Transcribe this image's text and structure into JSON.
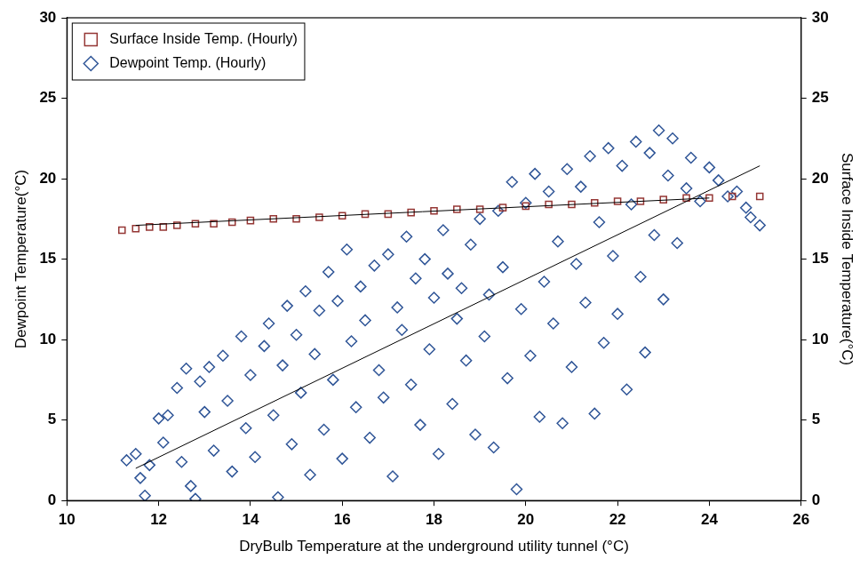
{
  "chart_data": {
    "type": "scatter",
    "xlabel": "DryBulb Temperature at the underground utility tunnel (°C)",
    "ylabel": "Dewpoint Temperature(°C)",
    "y2label": "Surface Inside Temperature(°C)",
    "xlim": [
      10,
      26
    ],
    "xticks": [
      10,
      12,
      14,
      16,
      18,
      20,
      22,
      24,
      26
    ],
    "ylim": [
      0,
      30
    ],
    "yticks": [
      0,
      5,
      10,
      15,
      20,
      25,
      30
    ],
    "y2lim": [
      0,
      30
    ],
    "y2ticks": [
      0,
      5,
      10,
      15,
      20,
      25,
      30
    ],
    "grid": false,
    "legend": "upper left",
    "series": [
      {
        "name": "Surface Inside Temp. (Hourly)",
        "color": "#953735",
        "marker": "square",
        "axis": "y2",
        "x": [
          11.2,
          11.5,
          11.8,
          12.1,
          12.4,
          12.8,
          13.2,
          13.6,
          14.0,
          14.5,
          15.0,
          15.5,
          16.0,
          16.5,
          17.0,
          17.5,
          18.0,
          18.5,
          19.0,
          19.5,
          20.0,
          20.5,
          21.0,
          21.5,
          22.0,
          22.5,
          23.0,
          23.5,
          24.0,
          24.5,
          25.1
        ],
        "values": [
          16.8,
          16.9,
          17.0,
          17.0,
          17.1,
          17.2,
          17.2,
          17.3,
          17.4,
          17.5,
          17.5,
          17.6,
          17.7,
          17.8,
          17.8,
          17.9,
          18.0,
          18.1,
          18.1,
          18.2,
          18.3,
          18.4,
          18.4,
          18.5,
          18.6,
          18.6,
          18.7,
          18.8,
          18.8,
          18.9,
          18.9
        ],
        "trend": {
          "x": [
            11.5,
            24.0
          ],
          "values": [
            17.1,
            18.8
          ]
        }
      },
      {
        "name": "Dewpoint Temp. (Hourly)",
        "color": "#2f5597",
        "marker": "diamond",
        "x": [
          11.3,
          11.5,
          11.6,
          11.7,
          11.8,
          12.0,
          12.1,
          12.2,
          12.4,
          12.5,
          12.6,
          12.7,
          12.8,
          12.9,
          13.0,
          13.1,
          13.2,
          13.4,
          13.5,
          13.6,
          13.8,
          13.9,
          14.0,
          14.1,
          14.3,
          14.4,
          14.5,
          14.6,
          14.7,
          14.8,
          14.9,
          15.0,
          15.1,
          15.2,
          15.3,
          15.4,
          15.5,
          15.6,
          15.7,
          15.8,
          15.9,
          16.0,
          16.1,
          16.2,
          16.3,
          16.4,
          16.5,
          16.6,
          16.7,
          16.8,
          16.9,
          17.0,
          17.1,
          17.2,
          17.3,
          17.4,
          17.5,
          17.6,
          17.7,
          17.8,
          17.9,
          18.0,
          18.1,
          18.2,
          18.3,
          18.4,
          18.5,
          18.6,
          18.7,
          18.8,
          18.9,
          19.0,
          19.1,
          19.2,
          19.3,
          19.4,
          19.5,
          19.6,
          19.7,
          19.8,
          19.9,
          20.0,
          20.1,
          20.2,
          20.3,
          20.4,
          20.5,
          20.6,
          20.7,
          20.8,
          20.9,
          21.0,
          21.1,
          21.2,
          21.3,
          21.4,
          21.5,
          21.6,
          21.7,
          21.8,
          21.9,
          22.0,
          22.1,
          22.2,
          22.3,
          22.4,
          22.5,
          22.6,
          22.7,
          22.8,
          22.9,
          23.0,
          23.1,
          23.2,
          23.3,
          23.5,
          23.6,
          23.8,
          24.0,
          24.2,
          24.4,
          24.6,
          24.8,
          24.9,
          25.1
        ],
        "values": [
          2.5,
          2.9,
          1.4,
          0.3,
          2.2,
          5.1,
          3.6,
          5.3,
          7.0,
          2.4,
          8.2,
          0.9,
          0.1,
          7.4,
          5.5,
          8.3,
          3.1,
          9.0,
          6.2,
          1.8,
          10.2,
          4.5,
          7.8,
          2.7,
          9.6,
          11.0,
          5.3,
          0.2,
          8.4,
          12.1,
          3.5,
          10.3,
          6.7,
          13.0,
          1.6,
          9.1,
          11.8,
          4.4,
          14.2,
          7.5,
          12.4,
          2.6,
          15.6,
          9.9,
          5.8,
          13.3,
          11.2,
          3.9,
          14.6,
          8.1,
          6.4,
          15.3,
          1.5,
          12.0,
          10.6,
          16.4,
          7.2,
          13.8,
          4.7,
          15.0,
          9.4,
          12.6,
          2.9,
          16.8,
          14.1,
          6.0,
          11.3,
          13.2,
          8.7,
          15.9,
          4.1,
          17.5,
          10.2,
          12.8,
          3.3,
          18.0,
          14.5,
          7.6,
          19.8,
          0.7,
          11.9,
          18.5,
          9.0,
          20.3,
          5.2,
          13.6,
          19.2,
          11.0,
          16.1,
          4.8,
          20.6,
          8.3,
          14.7,
          19.5,
          12.3,
          21.4,
          5.4,
          17.3,
          9.8,
          21.9,
          15.2,
          11.6,
          20.8,
          6.9,
          18.4,
          22.3,
          13.9,
          9.2,
          21.6,
          16.5,
          23.0,
          12.5,
          20.2,
          22.5,
          16.0,
          19.4,
          21.3,
          18.6,
          20.7,
          19.9,
          18.9,
          19.2,
          18.2,
          17.6,
          17.1
        ],
        "trend": {
          "x": [
            11.5,
            25.1
          ],
          "values": [
            2.0,
            20.8
          ]
        }
      }
    ]
  }
}
